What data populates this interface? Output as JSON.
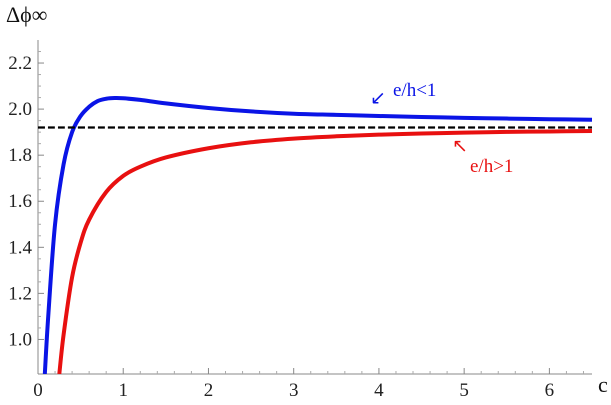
{
  "chart_data": {
    "type": "line",
    "ylabel": "Δϕ∞",
    "xlabel": "c",
    "xlim": [
      0,
      6.5
    ],
    "ylim": [
      0.85,
      2.3
    ],
    "x_ticks": [
      0,
      1,
      2,
      3,
      4,
      5,
      6
    ],
    "x_tick_labels": [
      "0",
      "1",
      "2",
      "3",
      "4",
      "5",
      "6"
    ],
    "y_ticks": [
      1.0,
      1.2,
      1.4,
      1.6,
      1.8,
      2.0,
      2.2
    ],
    "y_tick_labels": [
      "1.0",
      "1.2",
      "1.4",
      "1.6",
      "1.8",
      "2.0",
      "2.2"
    ],
    "grid": false,
    "series": [
      {
        "name": "e/h<1",
        "color": "#0a14e6",
        "x": [
          0.08,
          0.12,
          0.2,
          0.3,
          0.4,
          0.5,
          0.6,
          0.7,
          0.8,
          0.9,
          1.0,
          1.2,
          1.5,
          2.0,
          2.5,
          3.0,
          3.5,
          4.0,
          4.5,
          5.0,
          5.5,
          6.0,
          6.5
        ],
        "values": [
          0.85,
          1.1,
          1.5,
          1.76,
          1.9,
          1.97,
          2.01,
          2.035,
          2.045,
          2.048,
          2.047,
          2.04,
          2.025,
          2.005,
          1.99,
          1.98,
          1.975,
          1.97,
          1.966,
          1.962,
          1.959,
          1.956,
          1.954
        ]
      },
      {
        "name": "e/h>1",
        "color": "#e81010",
        "x": [
          0.25,
          0.3,
          0.4,
          0.5,
          0.6,
          0.8,
          1.0,
          1.2,
          1.5,
          2.0,
          2.5,
          3.0,
          3.5,
          4.0,
          4.5,
          5.0,
          5.5,
          6.0,
          6.5
        ],
        "values": [
          0.85,
          1.02,
          1.27,
          1.42,
          1.52,
          1.64,
          1.71,
          1.75,
          1.79,
          1.83,
          1.856,
          1.872,
          1.882,
          1.889,
          1.894,
          1.898,
          1.901,
          1.903,
          1.905
        ]
      },
      {
        "name": "",
        "color": "#000000",
        "dashed": true,
        "x": [
          0,
          6.5
        ],
        "values": [
          1.92,
          1.92
        ]
      }
    ],
    "annotations": [
      {
        "text": "e/h<1",
        "color": "#0a14e6",
        "arrow": "↙"
      },
      {
        "text": "e/h>1",
        "color": "#e81010",
        "arrow": "↖"
      }
    ]
  }
}
